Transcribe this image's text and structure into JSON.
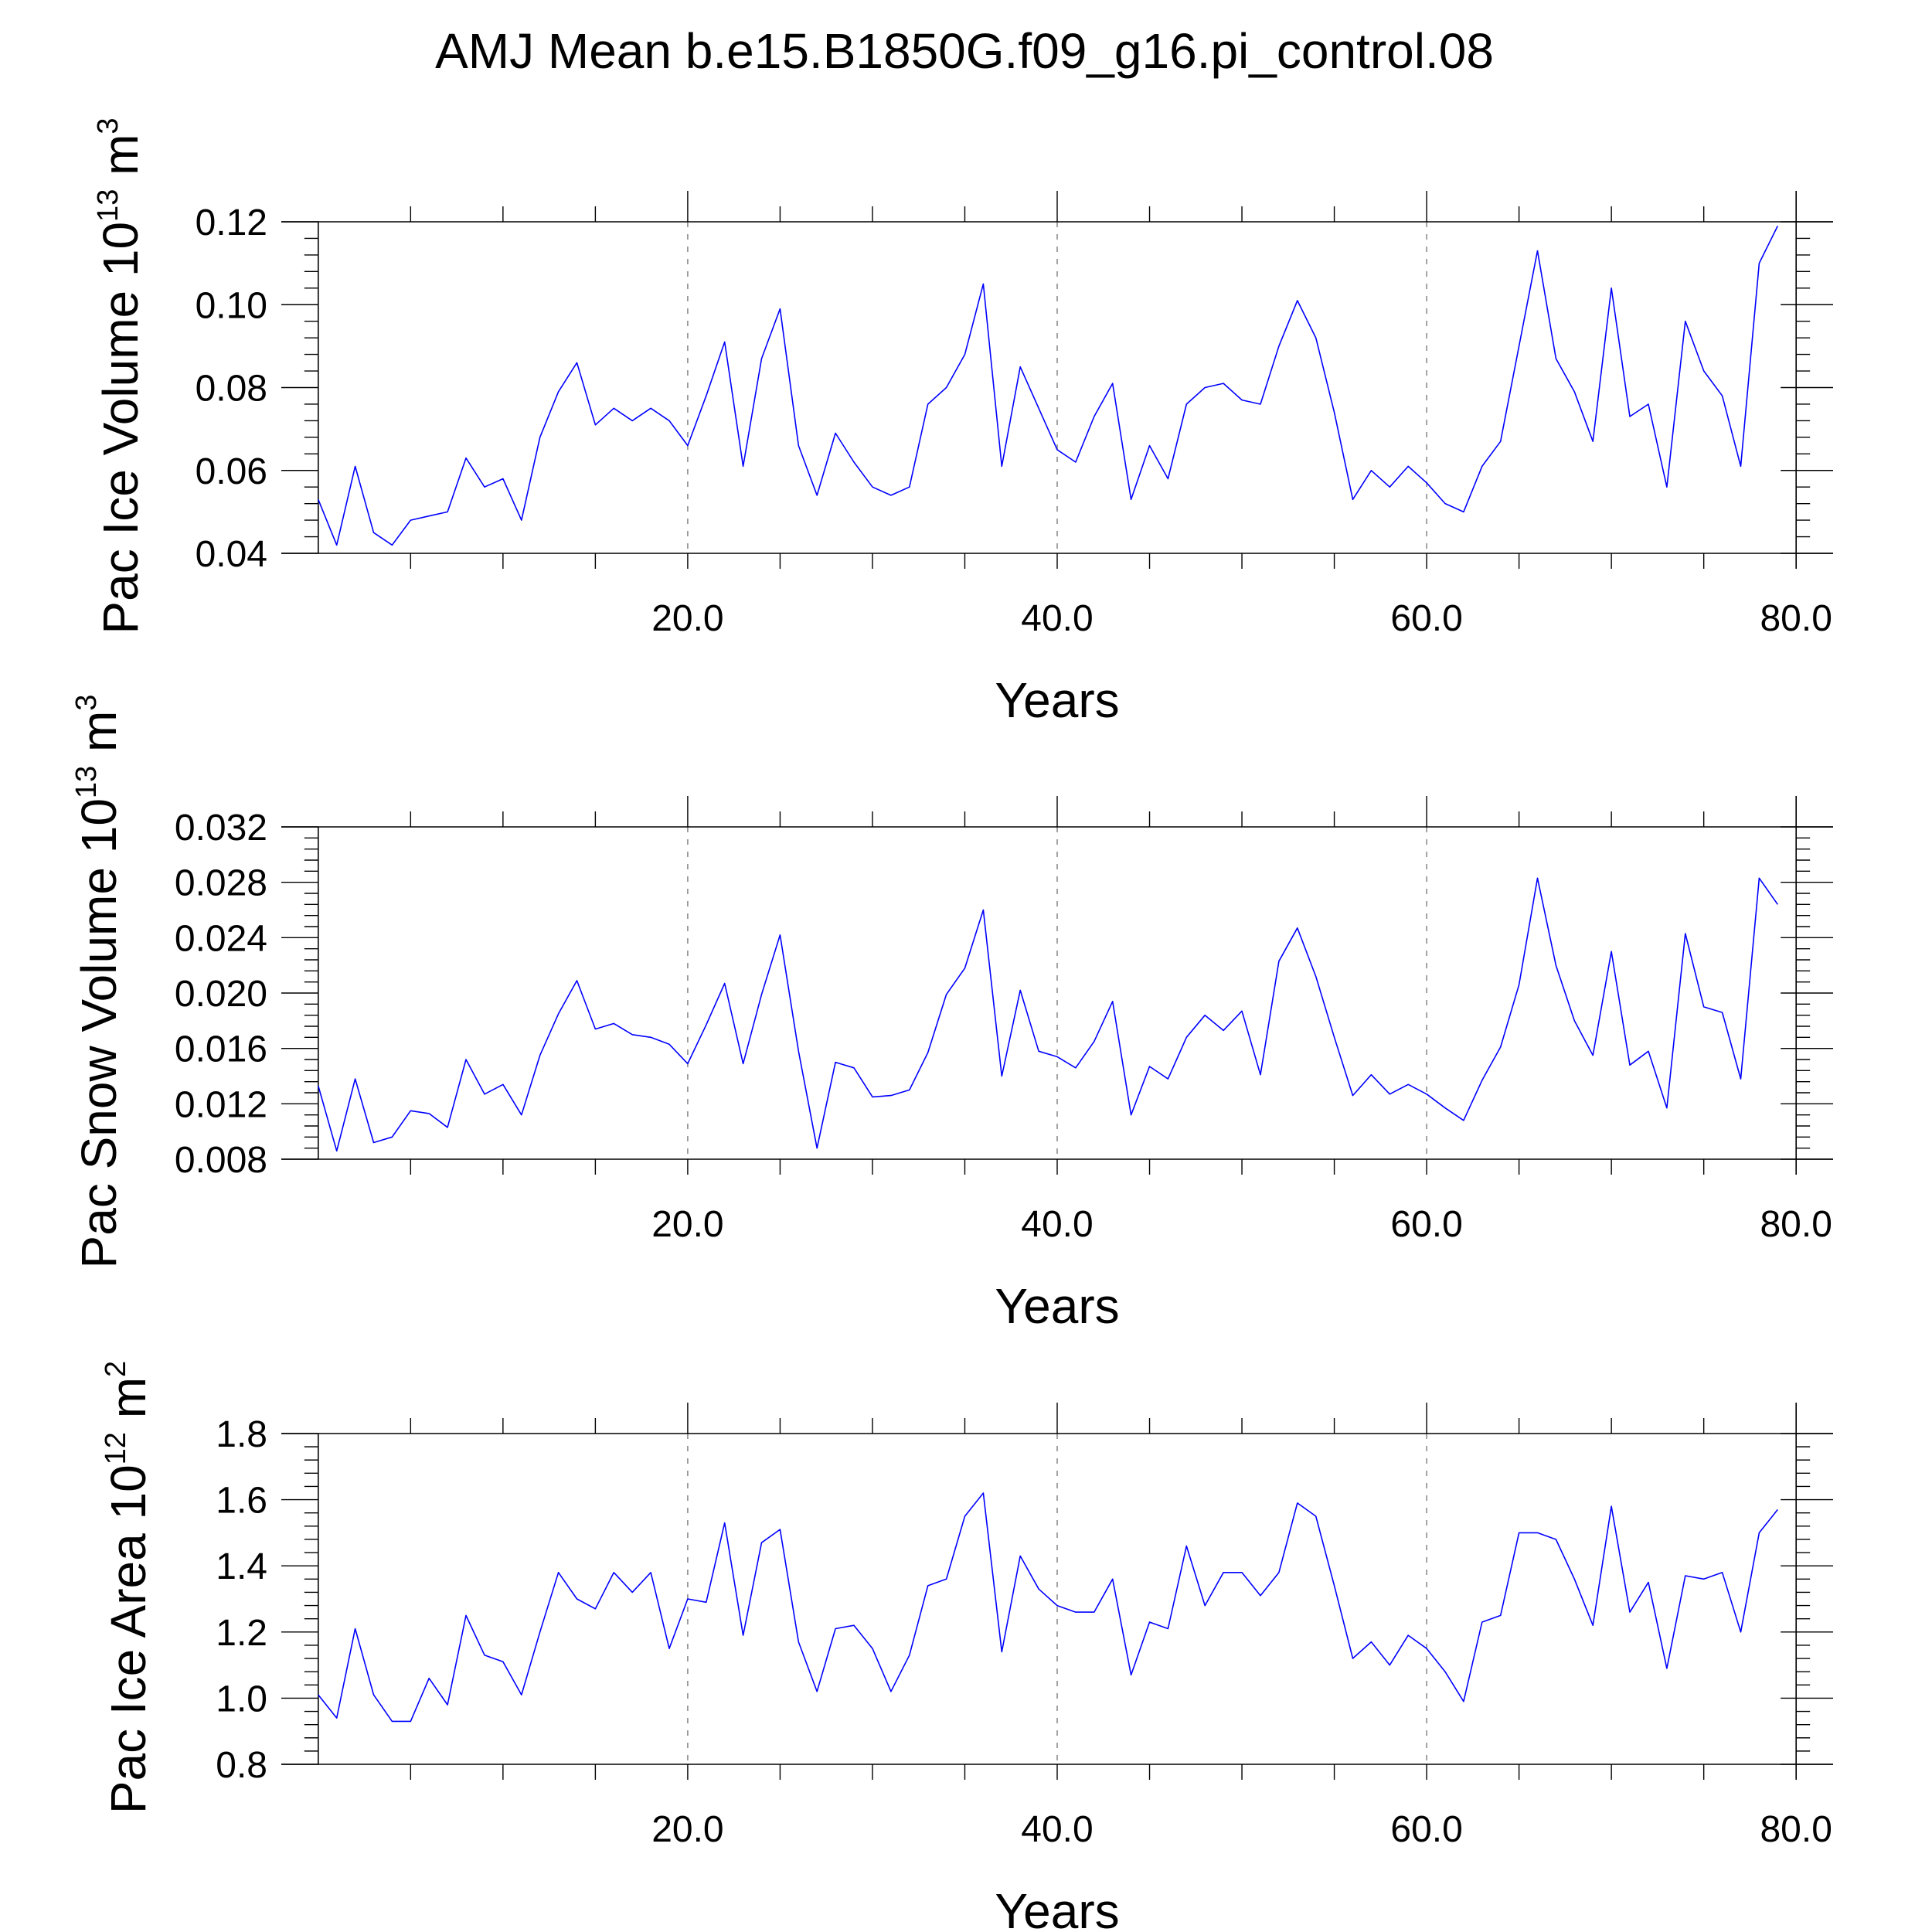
{
  "title": "AMJ Mean b.e15.B1850G.f09_g16.pi_control.08",
  "chart_data": [
    {
      "type": "line",
      "ylabel": {
        "text": "Pac Ice Volume 10",
        "sup": "13",
        "unit": "m",
        "unit_sup": "3"
      },
      "xlabel": "Years",
      "xlim": [
        -2,
        82
      ],
      "ylim": [
        0.04,
        0.12
      ],
      "xticks": [
        20,
        40,
        60,
        80
      ],
      "xtick_labels": [
        "20.0",
        "40.0",
        "60.0",
        "80.0"
      ],
      "yticks": [
        0.04,
        0.06,
        0.08,
        0.1,
        0.12
      ],
      "ytick_labels": [
        "0.04",
        "0.06",
        "0.08",
        "0.10",
        "0.12"
      ],
      "grid": "vertical dashed at labeled x ticks",
      "color": "#0000ff",
      "x_start": 0,
      "values": [
        0.053,
        0.042,
        0.061,
        0.045,
        0.042,
        0.048,
        0.049,
        0.05,
        0.063,
        0.056,
        0.058,
        0.048,
        0.068,
        0.079,
        0.086,
        0.071,
        0.075,
        0.072,
        0.075,
        0.072,
        0.066,
        0.078,
        0.091,
        0.061,
        0.087,
        0.099,
        0.066,
        0.054,
        0.069,
        0.062,
        0.056,
        0.054,
        0.056,
        0.076,
        0.08,
        0.088,
        0.105,
        0.061,
        0.085,
        0.075,
        0.065,
        0.062,
        0.073,
        0.081,
        0.053,
        0.066,
        0.058,
        0.076,
        0.08,
        0.081,
        0.077,
        0.076,
        0.09,
        0.101,
        0.092,
        0.074,
        0.053,
        0.06,
        0.056,
        0.061,
        0.057,
        0.052,
        0.05,
        0.061,
        0.067,
        0.09,
        0.113,
        0.087,
        0.079,
        0.067,
        0.104,
        0.073,
        0.076,
        0.056,
        0.096,
        0.084,
        0.078,
        0.061,
        0.11,
        0.119
      ]
    },
    {
      "type": "line",
      "ylabel": {
        "text": "Pac Snow Volume 10",
        "sup": "13",
        "unit": "m",
        "unit_sup": "3"
      },
      "xlabel": "Years",
      "xlim": [
        -2,
        82
      ],
      "ylim": [
        0.008,
        0.032
      ],
      "xticks": [
        20,
        40,
        60,
        80
      ],
      "xtick_labels": [
        "20.0",
        "40.0",
        "60.0",
        "80.0"
      ],
      "yticks": [
        0.008,
        0.012,
        0.016,
        0.02,
        0.024,
        0.028,
        0.032
      ],
      "ytick_labels": [
        "0.008",
        "0.012",
        "0.016",
        "0.020",
        "0.024",
        "0.028",
        "0.032"
      ],
      "grid": "vertical dashed at labeled x ticks",
      "color": "#0000ff",
      "x_start": 0,
      "values": [
        0.0133,
        0.0086,
        0.0138,
        0.0092,
        0.0096,
        0.0115,
        0.0113,
        0.0103,
        0.0152,
        0.0127,
        0.0134,
        0.0112,
        0.0155,
        0.0185,
        0.0209,
        0.0174,
        0.0178,
        0.017,
        0.0168,
        0.0163,
        0.0149,
        0.0177,
        0.0207,
        0.0149,
        0.0199,
        0.0242,
        0.0158,
        0.0088,
        0.015,
        0.0146,
        0.0125,
        0.0126,
        0.013,
        0.0157,
        0.0199,
        0.0218,
        0.026,
        0.014,
        0.0202,
        0.0158,
        0.0154,
        0.0146,
        0.0165,
        0.0194,
        0.0112,
        0.0147,
        0.0138,
        0.0168,
        0.0184,
        0.0173,
        0.0187,
        0.0141,
        0.0223,
        0.0247,
        0.0212,
        0.0168,
        0.0126,
        0.0141,
        0.0127,
        0.0134,
        0.0127,
        0.0117,
        0.0108,
        0.0137,
        0.0161,
        0.0206,
        0.0283,
        0.022,
        0.018,
        0.0155,
        0.023,
        0.0148,
        0.0158,
        0.0117,
        0.0243,
        0.019,
        0.0186,
        0.0138,
        0.0283,
        0.0264
      ]
    },
    {
      "type": "line",
      "ylabel": {
        "text": "Pac Ice Area 10",
        "sup": "12",
        "unit": "m",
        "unit_sup": "2"
      },
      "xlabel": "Years",
      "xlim": [
        -2,
        82
      ],
      "ylim": [
        0.8,
        1.8
      ],
      "xticks": [
        20,
        40,
        60,
        80
      ],
      "xtick_labels": [
        "20.0",
        "40.0",
        "60.0",
        "80.0"
      ],
      "yticks": [
        0.8,
        1.0,
        1.2,
        1.4,
        1.6,
        1.8
      ],
      "ytick_labels": [
        "0.8",
        "1.0",
        "1.2",
        "1.4",
        "1.6",
        "1.8"
      ],
      "grid": "vertical dashed at labeled x ticks",
      "color": "#0000ff",
      "x_start": 0,
      "values": [
        1.01,
        0.94,
        1.21,
        1.01,
        0.93,
        0.93,
        1.06,
        0.98,
        1.25,
        1.13,
        1.11,
        1.01,
        1.2,
        1.38,
        1.3,
        1.27,
        1.38,
        1.32,
        1.38,
        1.15,
        1.3,
        1.29,
        1.53,
        1.19,
        1.47,
        1.51,
        1.17,
        1.02,
        1.21,
        1.22,
        1.15,
        1.02,
        1.13,
        1.34,
        1.36,
        1.55,
        1.62,
        1.14,
        1.43,
        1.33,
        1.28,
        1.26,
        1.26,
        1.36,
        1.07,
        1.23,
        1.21,
        1.46,
        1.28,
        1.38,
        1.38,
        1.31,
        1.38,
        1.59,
        1.55,
        1.34,
        1.12,
        1.17,
        1.1,
        1.19,
        1.15,
        1.08,
        0.99,
        1.23,
        1.25,
        1.5,
        1.5,
        1.48,
        1.36,
        1.22,
        1.58,
        1.26,
        1.35,
        1.09,
        1.37,
        1.36,
        1.38,
        1.2,
        1.5,
        1.57
      ]
    }
  ]
}
